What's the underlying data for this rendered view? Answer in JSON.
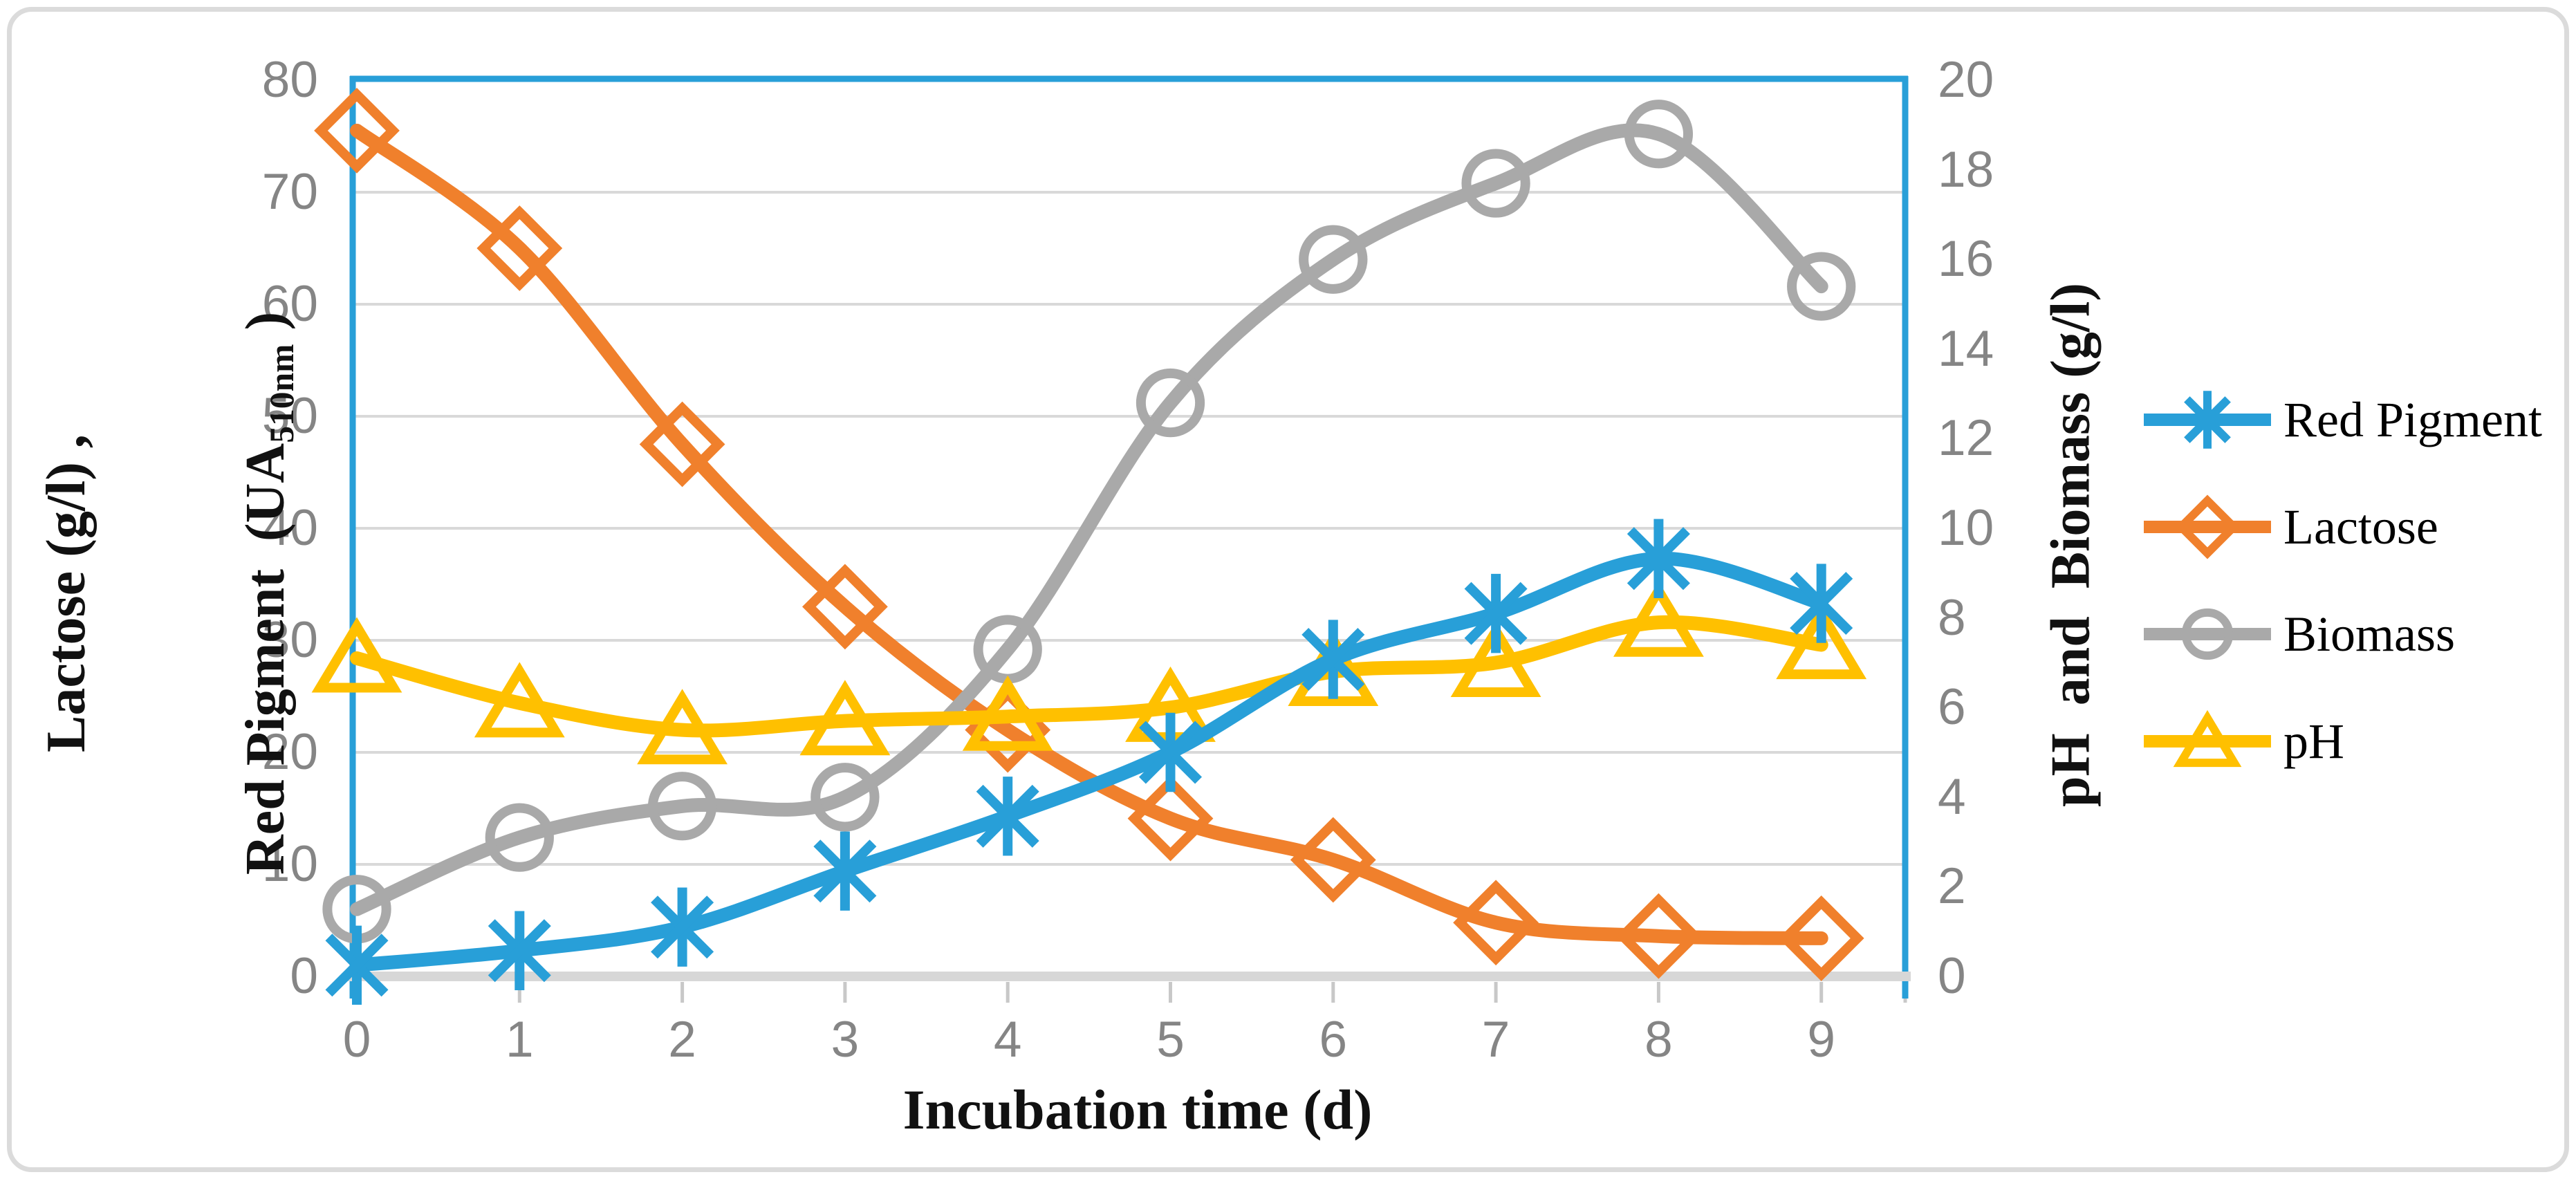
{
  "figure": {
    "x_axis": {
      "title": "Incubation time (d)",
      "tick_labels": [
        "0",
        "1",
        "2",
        "3",
        "4",
        "5",
        "6",
        "7",
        "8",
        "9"
      ]
    },
    "y_left_axis": {
      "title_line1": "Lactose (g/l) ,",
      "title_line2_main": "Red Pigment  (UA",
      "title_line2_sub": "510nm",
      "title_line2_end": " )",
      "tick_labels": [
        "0",
        "10",
        "20",
        "30",
        "40",
        "50",
        "60",
        "70",
        "80"
      ]
    },
    "y_right_axis": {
      "title": "pH  and  Biomass (g/l)",
      "tick_labels": [
        "0",
        "2",
        "4",
        "6",
        "8",
        "10",
        "12",
        "14",
        "16",
        "18",
        "20"
      ]
    }
  },
  "legend": [
    {
      "label": "Red Pigment"
    },
    {
      "label": "Lactose"
    },
    {
      "label": "Biomass"
    },
    {
      "label": "pH"
    }
  ],
  "colors": {
    "blue": "#289FD8",
    "orange": "#F0802C",
    "gray": "#A9A9A9",
    "yellow": "#FFC000",
    "gridline": "#D9D9D9",
    "axis_line_blue": "#289FD8",
    "axis_line_gray": "#D7D7D7",
    "tick_mark": "#C8C8C8",
    "tick_text": "#858585",
    "border": "#DBDBDB"
  },
  "chart_data": {
    "type": "line",
    "x": [
      0,
      1,
      2,
      3,
      4,
      5,
      6,
      7,
      8,
      9
    ],
    "xlabel": "Incubation time (d)",
    "ylabel_left": "Lactose (g/l), Red Pigment (UA510nm)",
    "ylabel_right": "pH and Biomass (g/l)",
    "ylim_left": [
      0,
      80
    ],
    "ylim_right": [
      0,
      20
    ],
    "x_tick_labels": [
      "0",
      "1",
      "2",
      "3",
      "4",
      "5",
      "6",
      "7",
      "8",
      "9"
    ],
    "grid": true,
    "legend_position": "right",
    "smoothed_lines": true,
    "series": [
      {
        "name": "Red Pigment",
        "axis": "left",
        "color": "#289FD8",
        "marker": "asterisk",
        "values": [
          1.0,
          2.3,
          4.4,
          9.4,
          14.3,
          20.0,
          28.3,
          32.4,
          37.3,
          33.3
        ]
      },
      {
        "name": "Lactose",
        "axis": "left",
        "color": "#F0802C",
        "marker": "diamond",
        "values": [
          75.5,
          65.0,
          47.5,
          33.0,
          22.0,
          14.1,
          10.4,
          4.8,
          3.6,
          3.4
        ]
      },
      {
        "name": "Biomass",
        "axis": "right",
        "color": "#A9A9A9",
        "marker": "circle",
        "values": [
          1.5,
          3.1,
          3.8,
          4.0,
          7.3,
          12.8,
          16.0,
          17.7,
          18.8,
          15.4
        ]
      },
      {
        "name": "pH",
        "axis": "right",
        "color": "#FFC000",
        "marker": "triangle",
        "values": [
          7.1,
          6.1,
          5.5,
          5.7,
          5.8,
          6.0,
          6.8,
          7.0,
          7.9,
          7.4
        ]
      }
    ],
    "draw_order": [
      "Lactose",
      "Biomass",
      "pH",
      "Red Pigment"
    ]
  }
}
